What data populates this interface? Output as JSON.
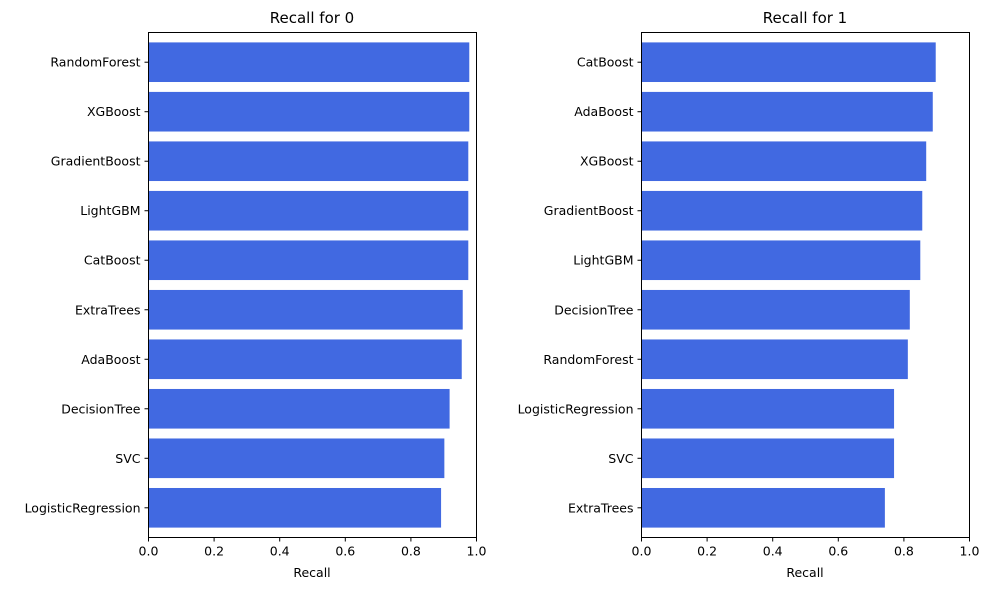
{
  "chart_data": [
    {
      "type": "bar",
      "orientation": "horizontal",
      "title": "Recall for 0",
      "xlabel": "Recall",
      "ylabel": "",
      "xlim": [
        0,
        1
      ],
      "xticks": [
        "0.0",
        "0.2",
        "0.4",
        "0.6",
        "0.8",
        "1.0"
      ],
      "color": "#4169e1",
      "grid": false,
      "categories": [
        "RandomForest",
        "XGBoost",
        "GradientBoost",
        "LightGBM",
        "CatBoost",
        "ExtraTrees",
        "AdaBoost",
        "DecisionTree",
        "SVC",
        "LogisticRegression"
      ],
      "values": [
        0.978,
        0.978,
        0.975,
        0.975,
        0.975,
        0.958,
        0.955,
        0.918,
        0.902,
        0.892
      ]
    },
    {
      "type": "bar",
      "orientation": "horizontal",
      "title": "Recall for 1",
      "xlabel": "Recall",
      "ylabel": "",
      "xlim": [
        0,
        1
      ],
      "xticks": [
        "0.0",
        "0.2",
        "0.4",
        "0.6",
        "0.8",
        "1.0"
      ],
      "color": "#4169e1",
      "grid": false,
      "categories": [
        "CatBoost",
        "AdaBoost",
        "XGBoost",
        "GradientBoost",
        "LightGBM",
        "DecisionTree",
        "RandomForest",
        "LogisticRegression",
        "SVC",
        "ExtraTrees"
      ],
      "values": [
        0.897,
        0.888,
        0.868,
        0.856,
        0.85,
        0.818,
        0.812,
        0.77,
        0.77,
        0.742
      ]
    }
  ]
}
